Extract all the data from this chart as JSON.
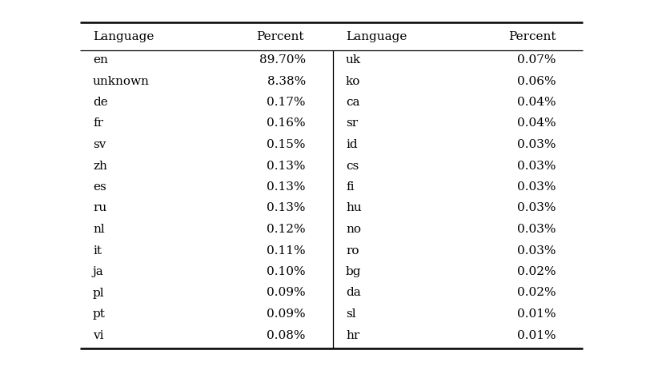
{
  "left_languages": [
    "en",
    "unknown",
    "de",
    "fr",
    "sv",
    "zh",
    "es",
    "ru",
    "nl",
    "it",
    "ja",
    "pl",
    "pt",
    "vi"
  ],
  "left_percents": [
    "89.70%",
    "8.38%",
    "0.17%",
    "0.16%",
    "0.15%",
    "0.13%",
    "0.13%",
    "0.13%",
    "0.12%",
    "0.11%",
    "0.10%",
    "0.09%",
    "0.09%",
    "0.08%"
  ],
  "right_languages": [
    "uk",
    "ko",
    "ca",
    "sr",
    "id",
    "cs",
    "fi",
    "hu",
    "no",
    "ro",
    "bg",
    "da",
    "sl",
    "hr"
  ],
  "right_percents": [
    "0.07%",
    "0.06%",
    "0.04%",
    "0.04%",
    "0.03%",
    "0.03%",
    "0.03%",
    "0.03%",
    "0.03%",
    "0.03%",
    "0.02%",
    "0.02%",
    "0.01%",
    "0.01%"
  ],
  "col_headers": [
    "Language",
    "Percent",
    "Language",
    "Percent"
  ],
  "background_color": "#ffffff",
  "text_color": "#000000",
  "font_size": 11.0,
  "header_font_size": 11.0
}
